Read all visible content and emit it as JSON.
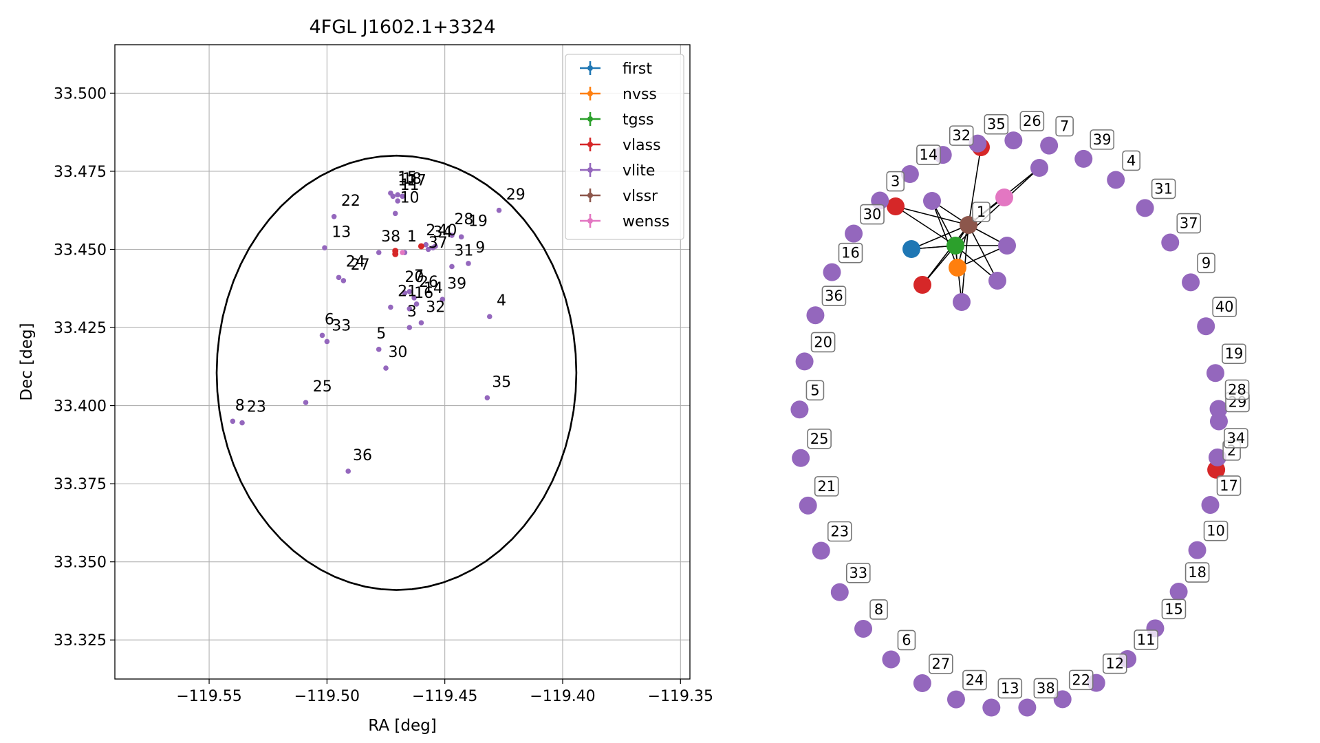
{
  "scatter": {
    "title": "4FGL J1602.1+3324",
    "xlabel": "RA [deg]",
    "ylabel": "Dec [deg]",
    "xlim": [
      -119.59,
      -119.346
    ],
    "ylim": [
      33.3125,
      33.5155
    ],
    "xticks": [
      -119.55,
      -119.5,
      -119.45,
      -119.4,
      -119.35
    ],
    "xtick_labels": [
      "−119.55",
      "−119.50",
      "−119.45",
      "−119.40",
      "−119.35"
    ],
    "yticks": [
      33.325,
      33.35,
      33.375,
      33.4,
      33.425,
      33.45,
      33.475,
      33.5
    ],
    "ytick_labels": [
      "33.325",
      "33.350",
      "33.375",
      "33.400",
      "33.425",
      "33.450",
      "33.475",
      "33.500"
    ],
    "ellipse": {
      "center": [
        -119.4705,
        33.4105
      ],
      "ra_semi_axis": 0.0763,
      "dec_semi_axis": 0.0695
    },
    "legend": {
      "placement": "top-right",
      "entries": [
        {
          "name": "first",
          "color": "#1f77b4"
        },
        {
          "name": "nvss",
          "color": "#ff7f0e"
        },
        {
          "name": "tgss",
          "color": "#2ca02c"
        },
        {
          "name": "vlass",
          "color": "#d62728"
        },
        {
          "name": "vlite",
          "color": "#9467bd"
        },
        {
          "name": "vlssr",
          "color": "#8c564b"
        },
        {
          "name": "wenss",
          "color": "#e377c2"
        }
      ]
    },
    "vlite_color": "#9467bd",
    "points": [
      {
        "label": "1",
        "ra": -119.467,
        "dec": 33.449,
        "lra": -119.466,
        "ldec": 33.4525
      },
      {
        "label": "2",
        "ra": -119.458,
        "dec": 33.4515,
        "lra": -119.458,
        "ldec": 33.4545
      },
      {
        "label": "3",
        "ra": -119.465,
        "dec": 33.425,
        "lra": -119.466,
        "ldec": 33.4285
      },
      {
        "label": "4",
        "ra": -119.431,
        "dec": 33.4285,
        "lra": -119.428,
        "ldec": 33.432
      },
      {
        "label": "5",
        "ra": -119.478,
        "dec": 33.418,
        "lra": -119.479,
        "ldec": 33.4215
      },
      {
        "label": "6",
        "ra": -119.502,
        "dec": 33.4225,
        "lra": -119.501,
        "ldec": 33.426
      },
      {
        "label": "7",
        "ra": -119.465,
        "dec": 33.4365,
        "lra": -119.463,
        "ldec": 33.44
      },
      {
        "label": "8",
        "ra": -119.54,
        "dec": 33.395,
        "lra": -119.539,
        "ldec": 33.3985
      },
      {
        "label": "9",
        "ra": -119.44,
        "dec": 33.4455,
        "lra": -119.437,
        "ldec": 33.449
      },
      {
        "label": "10",
        "ra": -119.471,
        "dec": 33.4615,
        "lra": -119.469,
        "ldec": 33.465
      },
      {
        "label": "11",
        "ra": -119.47,
        "dec": 33.4655,
        "lra": -119.469,
        "ldec": 33.469
      },
      {
        "label": "12",
        "ra": -119.472,
        "dec": 33.467,
        "lra": -119.47,
        "ldec": 33.4705
      },
      {
        "label": "13",
        "ra": -119.501,
        "dec": 33.4505,
        "lra": -119.498,
        "ldec": 33.454
      },
      {
        "label": "14",
        "ra": -119.462,
        "dec": 33.4325,
        "lra": -119.459,
        "ldec": 33.436
      },
      {
        "label": "15",
        "ra": -119.473,
        "dec": 33.468,
        "lra": -119.47,
        "ldec": 33.4715
      },
      {
        "label": "16",
        "ra": -119.465,
        "dec": 33.431,
        "lra": -119.463,
        "ldec": 33.4345
      },
      {
        "label": "17",
        "ra": -119.468,
        "dec": 33.467,
        "lra": -119.466,
        "ldec": 33.4705
      },
      {
        "label": "18",
        "ra": -119.47,
        "dec": 33.4675,
        "lra": -119.468,
        "ldec": 33.471
      },
      {
        "label": "19",
        "ra": -119.443,
        "dec": 33.454,
        "lra": -119.44,
        "ldec": 33.4575
      },
      {
        "label": "20",
        "ra": -119.467,
        "dec": 33.436,
        "lra": -119.467,
        "ldec": 33.4395
      },
      {
        "label": "21",
        "ra": -119.473,
        "dec": 33.4315,
        "lra": -119.47,
        "ldec": 33.435
      },
      {
        "label": "22",
        "ra": -119.497,
        "dec": 33.4605,
        "lra": -119.494,
        "ldec": 33.464
      },
      {
        "label": "23",
        "ra": -119.536,
        "dec": 33.3945,
        "lra": -119.534,
        "ldec": 33.398
      },
      {
        "label": "24",
        "ra": -119.495,
        "dec": 33.441,
        "lra": -119.492,
        "ldec": 33.4445
      },
      {
        "label": "25",
        "ra": -119.509,
        "dec": 33.401,
        "lra": -119.506,
        "ldec": 33.4045
      },
      {
        "label": "26",
        "ra": -119.463,
        "dec": 33.4345,
        "lra": -119.461,
        "ldec": 33.438
      },
      {
        "label": "27",
        "ra": -119.493,
        "dec": 33.44,
        "lra": -119.49,
        "ldec": 33.4435
      },
      {
        "label": "28",
        "ra": -119.447,
        "dec": 33.4545,
        "lra": -119.446,
        "ldec": 33.458
      },
      {
        "label": "29",
        "ra": -119.427,
        "dec": 33.4625,
        "lra": -119.424,
        "ldec": 33.466
      },
      {
        "label": "30",
        "ra": -119.475,
        "dec": 33.412,
        "lra": -119.474,
        "ldec": 33.4155
      },
      {
        "label": "31",
        "ra": -119.447,
        "dec": 33.4445,
        "lra": -119.446,
        "ldec": 33.448
      },
      {
        "label": "32",
        "ra": -119.46,
        "dec": 33.4265,
        "lra": -119.458,
        "ldec": 33.43
      },
      {
        "label": "33",
        "ra": -119.5,
        "dec": 33.4205,
        "lra": -119.498,
        "ldec": 33.424
      },
      {
        "label": "34",
        "ra": -119.455,
        "dec": 33.4505,
        "lra": -119.455,
        "ldec": 33.454
      },
      {
        "label": "35",
        "ra": -119.432,
        "dec": 33.4025,
        "lra": -119.43,
        "ldec": 33.406
      },
      {
        "label": "36",
        "ra": -119.491,
        "dec": 33.379,
        "lra": -119.489,
        "ldec": 33.3825
      },
      {
        "label": "37",
        "ra": -119.457,
        "dec": 33.45,
        "lra": -119.457,
        "ldec": 33.4505
      },
      {
        "label": "38",
        "ra": -119.478,
        "dec": 33.449,
        "lra": -119.477,
        "ldec": 33.4525
      },
      {
        "label": "39",
        "ra": -119.451,
        "dec": 33.434,
        "lra": -119.449,
        "ldec": 33.4375
      },
      {
        "label": "40",
        "ra": -119.454,
        "dec": 33.451,
        "lra": -119.453,
        "ldec": 33.4545
      }
    ],
    "vlass_points": [
      {
        "ra": -119.471,
        "dec": 33.4485
      },
      {
        "ra": -119.471,
        "dec": 33.4495
      },
      {
        "ra": -119.46,
        "dec": 33.451
      }
    ],
    "wenss_points": [
      {
        "ra": -119.468,
        "dec": 33.449
      }
    ]
  },
  "network": {
    "cluster_nodes": [
      {
        "source": "vlss",
        "color": "#8c564b"
      },
      {
        "source": "first",
        "color": "#1f77b4"
      },
      {
        "source": "tgss",
        "color": "#2ca02c"
      },
      {
        "source": "nvss",
        "color": "#ff7f0e"
      },
      {
        "source": "vlass",
        "color": "#d62728"
      },
      {
        "source": "vlass",
        "color": "#d62728"
      },
      {
        "source": "vlass",
        "color": "#d62728"
      },
      {
        "source": "wenss",
        "color": "#e377c2"
      },
      {
        "source": "vlite",
        "color": "#9467bd"
      },
      {
        "source": "vlite",
        "color": "#9467bd"
      },
      {
        "source": "vlite",
        "color": "#9467bd"
      },
      {
        "source": "vlite",
        "color": "#9467bd"
      },
      {
        "source": "vlite",
        "color": "#9467bd"
      }
    ],
    "cluster_label": "1",
    "ring_nodes": [
      {
        "label": "2",
        "color": "#d62728"
      },
      {
        "label": "29"
      },
      {
        "label": "19"
      },
      {
        "label": "40"
      },
      {
        "label": "9"
      },
      {
        "label": "37"
      },
      {
        "label": "31"
      },
      {
        "label": "4"
      },
      {
        "label": "39"
      },
      {
        "label": "7"
      },
      {
        "label": "26"
      },
      {
        "label": "35"
      },
      {
        "label": "32"
      },
      {
        "label": "14"
      },
      {
        "label": "3"
      },
      {
        "label": "30"
      },
      {
        "label": "16"
      },
      {
        "label": "36"
      },
      {
        "label": "20"
      },
      {
        "label": "5"
      },
      {
        "label": "25"
      },
      {
        "label": "21"
      },
      {
        "label": "23"
      },
      {
        "label": "33"
      },
      {
        "label": "8"
      },
      {
        "label": "6"
      },
      {
        "label": "27"
      },
      {
        "label": "24"
      },
      {
        "label": "13"
      },
      {
        "label": "38"
      },
      {
        "label": "22"
      },
      {
        "label": "12"
      },
      {
        "label": "11"
      },
      {
        "label": "15"
      },
      {
        "label": "18"
      },
      {
        "label": "10"
      },
      {
        "label": "17"
      },
      {
        "label": "34"
      },
      {
        "label": "28"
      }
    ]
  }
}
